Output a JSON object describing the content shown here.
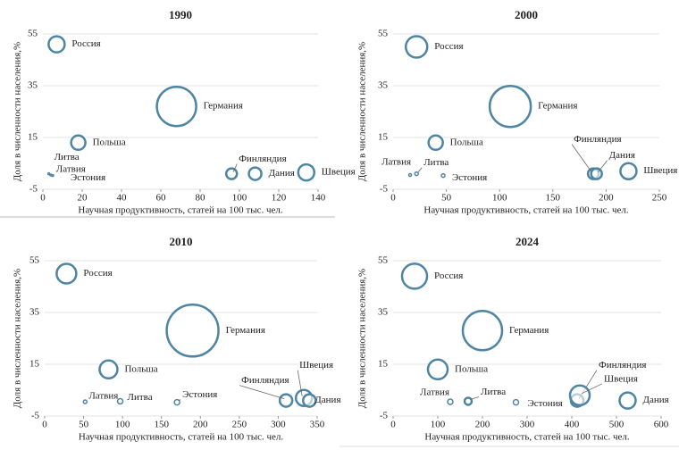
{
  "chart_data": [
    {
      "type": "bubble",
      "title": "1990",
      "xlabel": "Научная продуктивность, статей на 100 тыс. чел.",
      "ylabel": "Доля в численности населения,%",
      "labels": [
        "Россия",
        "Германия",
        "Польша",
        "Литва",
        "Латвия",
        "Эстония",
        "Финляндия",
        "Дания",
        "Швеция"
      ],
      "x": [
        7,
        68,
        18,
        3,
        4,
        5,
        96,
        108,
        134
      ],
      "y": [
        51,
        27,
        13,
        1,
        0.5,
        0.3,
        1,
        1,
        1.5
      ],
      "sizes": [
        9,
        22,
        8,
        1,
        1,
        1,
        6,
        7,
        9
      ],
      "xlim": [
        0,
        140
      ],
      "ylim": [
        -5,
        55
      ],
      "xticks": [
        0,
        20,
        40,
        60,
        80,
        100,
        120,
        140
      ],
      "yticks": [
        -5,
        15,
        35,
        55
      ],
      "color": "#4e85a3",
      "grid": true
    },
    {
      "type": "bubble",
      "title": "2000",
      "xlabel": "Научная продуктивность, статей на 100 тыс. чел.",
      "ylabel": "Доля в численности населения,%",
      "labels": [
        "Россия",
        "Германия",
        "Польша",
        "Латвия",
        "Литва",
        "Эстония",
        "Финляндия",
        "Дания",
        "Швеция"
      ],
      "x": [
        22,
        110,
        40,
        16,
        22,
        47,
        188,
        191,
        221
      ],
      "y": [
        50,
        27,
        13,
        0.5,
        1,
        0.3,
        1,
        1,
        2
      ],
      "sizes": [
        12,
        23,
        8,
        1.5,
        2,
        2,
        6,
        6,
        9
      ],
      "xlim": [
        0,
        250
      ],
      "ylim": [
        -5,
        55
      ],
      "xticks": [
        0,
        50,
        100,
        150,
        200,
        250
      ],
      "yticks": [
        -5,
        15,
        35,
        55
      ],
      "color": "#4e85a3",
      "grid": true
    },
    {
      "type": "bubble",
      "title": "2010",
      "xlabel": "Научная продуктивность, статей на 100 тыс. чел.",
      "ylabel": "Доля в численности населения,%",
      "labels": [
        "Россия",
        "Германия",
        "Польша",
        "Латвия",
        "Литва",
        "Эстония",
        "Финляндия",
        "Швеция",
        "Дания"
      ],
      "x": [
        28,
        190,
        82,
        52,
        97,
        170,
        310,
        333,
        340
      ],
      "y": [
        50,
        28,
        13,
        0.5,
        0.7,
        0.3,
        1,
        2,
        1
      ],
      "sizes": [
        11,
        29,
        10,
        2,
        3,
        3,
        7,
        9,
        7
      ],
      "xlim": [
        0,
        350
      ],
      "ylim": [
        -5,
        55
      ],
      "xticks": [
        0,
        50,
        100,
        150,
        200,
        250,
        300,
        350
      ],
      "yticks": [
        -5,
        15,
        35,
        55
      ],
      "color": "#4e85a3",
      "grid": true
    },
    {
      "type": "bubble",
      "title": "2024",
      "xlabel": "Научная продуктивность, статей на 100 тыс. чел.",
      "ylabel": "Доля в численности населения,%",
      "labels": [
        "Россия",
        "Германия",
        "Польша",
        "Латвия",
        "Литва",
        "Эстония",
        "Финляндия",
        "Швеция",
        "Дания"
      ],
      "x": [
        48,
        200,
        100,
        128,
        168,
        275,
        412,
        418,
        525
      ],
      "y": [
        49,
        28,
        13,
        0.5,
        0.7,
        0.3,
        1,
        3,
        1
      ],
      "sizes": [
        14,
        22,
        11,
        3,
        4,
        3,
        7,
        11,
        9
      ],
      "xlim": [
        0,
        600
      ],
      "ylim": [
        -5,
        55
      ],
      "xticks": [
        0,
        100,
        200,
        300,
        400,
        500,
        600
      ],
      "yticks": [
        -5,
        15,
        35,
        55
      ],
      "color": "#4e85a3",
      "grid": true
    }
  ]
}
